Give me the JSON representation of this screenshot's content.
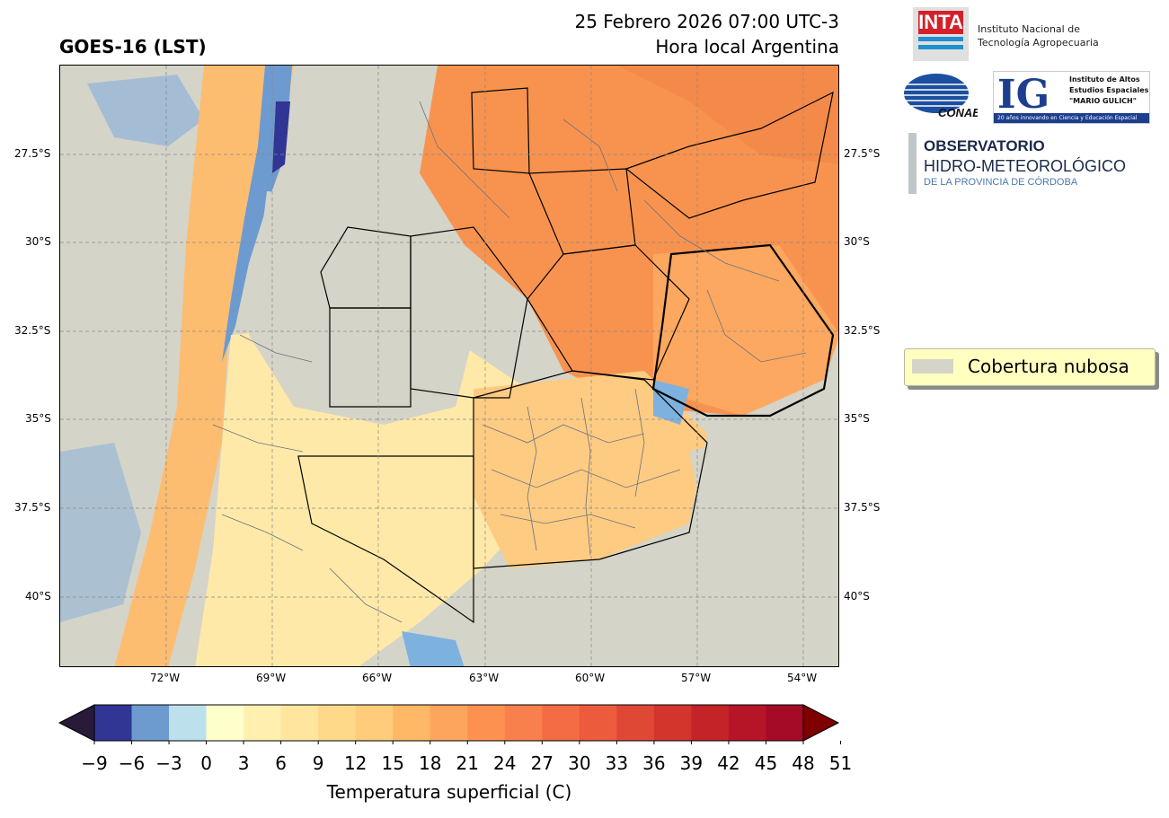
{
  "header": {
    "left_title": "GOES-16 (LST)",
    "date_line": "25 Febrero 2026 07:00 UTC-3",
    "tz_line": "Hora local Argentina"
  },
  "map": {
    "lat_ticks": [
      "27.5°S",
      "30°S",
      "32.5°S",
      "35°S",
      "37.5°S",
      "40°S"
    ],
    "lon_ticks": [
      "72°W",
      "69°W",
      "66°W",
      "63°W",
      "60°W",
      "57°W",
      "54°W"
    ],
    "cloud_color": "#d5d4c9"
  },
  "legend": {
    "label": "Cobertura nubosa"
  },
  "colorbar": {
    "label": "Temperatura superficial (C)",
    "ticks": [
      "−9",
      "−6",
      "−3",
      "0",
      "3",
      "6",
      "9",
      "12",
      "15",
      "18",
      "21",
      "24",
      "27",
      "30",
      "33",
      "36",
      "39",
      "42",
      "45",
      "48",
      "51"
    ],
    "colors": [
      "#313695",
      "#6d9bd0",
      "#bde0ed",
      "#ffffcc",
      "#fff0b0",
      "#ffe69c",
      "#fed98a",
      "#fecc7a",
      "#feb866",
      "#fda55c",
      "#fc9150",
      "#f8804c",
      "#f36c44",
      "#ec5b3c",
      "#e04836",
      "#d3352c",
      "#c42328",
      "#b51527",
      "#a50b27"
    ],
    "under_color": "#2a1a3a",
    "over_color": "#7f0000"
  },
  "logos": {
    "inta_mark": "INTA",
    "inta_line1": "Instituto Nacional de",
    "inta_line2": "Tecnología Agropecuaria",
    "conae_mark": "CONAE",
    "ig_mark": "IG",
    "ig_line1": "Instituto de Altos",
    "ig_line2": "Estudios Espaciales",
    "ig_line3": "\"MARIO GULICH\"",
    "ig_bar": "20 años innovando en Ciencia y Educación Espacial",
    "obs_line1": "OBSERVATORIO",
    "obs_line2": "HIDRO-METEOROLÓGICO",
    "obs_line3": "DE LA PROVINCIA DE CÓRDOBA"
  }
}
